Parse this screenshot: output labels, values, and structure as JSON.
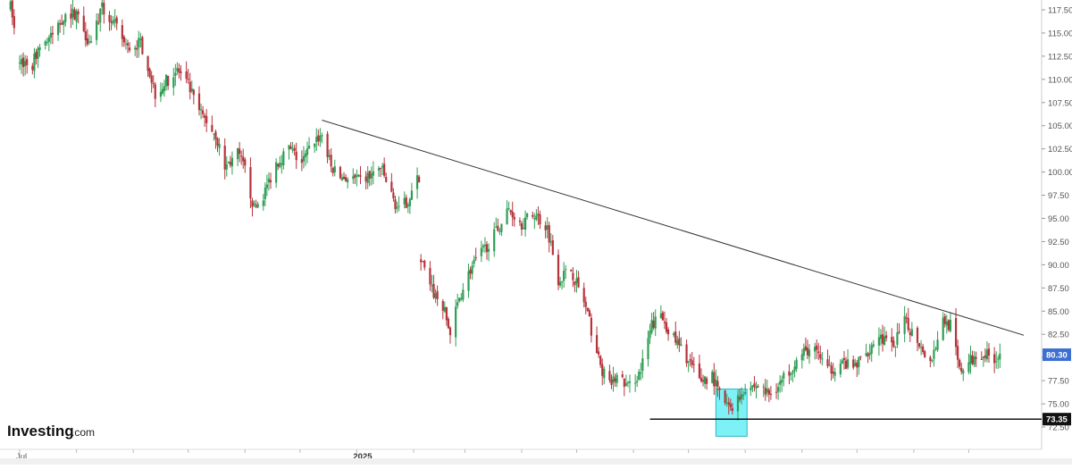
{
  "brand": {
    "name": "Investing",
    "suffix": ".com"
  },
  "colors": {
    "up": "#2e9e54",
    "down": "#b5333a",
    "trendline": "#333333",
    "support": "#000000",
    "highlight_fill": "#6ff0f5",
    "highlight_stroke": "#2bb7c4",
    "last_price_bg": "#3d6fd1",
    "level_badge_bg": "#111111",
    "axis_text": "#555555"
  },
  "chart_data": {
    "type": "candlestick",
    "title": "",
    "xlabel": "",
    "ylabel": "",
    "y_axis_position": "right",
    "ylim": [
      71.5,
      118.3
    ],
    "grid": false,
    "y_ticks": [
      "117.50",
      "115.00",
      "112.50",
      "110.00",
      "107.50",
      "105.00",
      "102.50",
      "100.00",
      "97.50",
      "95.00",
      "92.50",
      "90.00",
      "87.50",
      "85.00",
      "82.50",
      "80.00",
      "77.50",
      "75.00",
      "72.50"
    ],
    "x_labels": [
      {
        "text": "Jul",
        "date": "2024-07-01",
        "bold": false
      },
      {
        "text": "2025",
        "date": "2025-01-01",
        "bold": true
      }
    ],
    "last_price": {
      "label": "80.30",
      "value": 80.3
    },
    "support_level": {
      "label": "73.35",
      "value": 73.35,
      "from": "2025-06-10",
      "to": "2025-12-31"
    },
    "trendline": {
      "from": {
        "date": "2024-12-13",
        "value": 105.6
      },
      "to": {
        "date": "2025-12-31",
        "value": 82.4
      }
    },
    "highlight_zone": {
      "from": "2025-07-16",
      "to": "2025-08-02",
      "low": 71.5,
      "high": 76.6
    },
    "anchors": [
      [
        "2024-06-26",
        117.8
      ],
      [
        "2024-07-01",
        112.0
      ],
      [
        "2024-07-08",
        111.5
      ],
      [
        "2024-07-11",
        113.5
      ],
      [
        "2024-07-18",
        114.5
      ],
      [
        "2024-07-25",
        116.8
      ],
      [
        "2024-08-01",
        117.2
      ],
      [
        "2024-08-08",
        114.0
      ],
      [
        "2024-08-15",
        117.6
      ],
      [
        "2024-08-22",
        115.8
      ],
      [
        "2024-08-29",
        113.3
      ],
      [
        "2024-09-05",
        114.0
      ],
      [
        "2024-09-09",
        111.5
      ],
      [
        "2024-09-13",
        108.5
      ],
      [
        "2024-09-20",
        110.0
      ],
      [
        "2024-09-25",
        111.0
      ],
      [
        "2024-10-01",
        109.3
      ],
      [
        "2024-10-07",
        106.5
      ],
      [
        "2024-10-11",
        105.5
      ],
      [
        "2024-10-16",
        104.0
      ],
      [
        "2024-10-21",
        100.5
      ],
      [
        "2024-10-28",
        102.0
      ],
      [
        "2024-11-01",
        100.2
      ],
      [
        "2024-11-06",
        96.0
      ],
      [
        "2024-11-11",
        97.5
      ],
      [
        "2024-11-18",
        101.0
      ],
      [
        "2024-11-25",
        102.5
      ],
      [
        "2024-12-02",
        101.0
      ],
      [
        "2024-12-09",
        103.5
      ],
      [
        "2024-12-13",
        104.0
      ],
      [
        "2024-12-18",
        100.5
      ],
      [
        "2024-12-23",
        99.5
      ],
      [
        "2025-01-03",
        99.0
      ],
      [
        "2025-01-10",
        99.8
      ],
      [
        "2025-01-14",
        100.5
      ],
      [
        "2025-01-21",
        97.0
      ],
      [
        "2025-01-24",
        95.8
      ],
      [
        "2025-01-29",
        97.0
      ],
      [
        "2025-02-04",
        99.5
      ],
      [
        "2025-02-05",
        90.6
      ],
      [
        "2025-02-10",
        87.5
      ],
      [
        "2025-02-17",
        85.5
      ],
      [
        "2025-02-21",
        82.5
      ],
      [
        "2025-02-26",
        86.5
      ],
      [
        "2025-03-04",
        89.5
      ],
      [
        "2025-03-11",
        91.5
      ],
      [
        "2025-03-18",
        93.5
      ],
      [
        "2025-03-25",
        96.0
      ],
      [
        "2025-04-01",
        94.5
      ],
      [
        "2025-04-08",
        95.5
      ],
      [
        "2025-04-15",
        94.0
      ],
      [
        "2025-04-21",
        88.5
      ],
      [
        "2025-04-28",
        89.5
      ],
      [
        "2025-05-05",
        86.0
      ],
      [
        "2025-05-09",
        83.0
      ],
      [
        "2025-05-14",
        79.0
      ],
      [
        "2025-05-19",
        77.0
      ],
      [
        "2025-05-23",
        78.0
      ],
      [
        "2025-05-29",
        76.8
      ],
      [
        "2025-06-05",
        78.5
      ],
      [
        "2025-06-11",
        83.5
      ],
      [
        "2025-06-16",
        84.5
      ],
      [
        "2025-06-23",
        82.0
      ],
      [
        "2025-06-30",
        80.0
      ],
      [
        "2025-07-07",
        77.5
      ],
      [
        "2025-07-14",
        78.0
      ],
      [
        "2025-07-18",
        76.0
      ],
      [
        "2025-07-23",
        74.5
      ],
      [
        "2025-07-28",
        75.5
      ],
      [
        "2025-08-01",
        76.8
      ],
      [
        "2025-08-08",
        77.0
      ],
      [
        "2025-08-14",
        76.0
      ],
      [
        "2025-08-21",
        77.5
      ],
      [
        "2025-08-28",
        79.5
      ],
      [
        "2025-09-04",
        80.8
      ],
      [
        "2025-09-10",
        80.5
      ],
      [
        "2025-09-15",
        78.5
      ],
      [
        "2025-09-22",
        79.5
      ],
      [
        "2025-09-29",
        78.8
      ],
      [
        "2025-10-06",
        80.5
      ],
      [
        "2025-10-13",
        82.5
      ],
      [
        "2025-10-20",
        81.0
      ],
      [
        "2025-10-27",
        83.8
      ],
      [
        "2025-11-03",
        82.0
      ],
      [
        "2025-11-10",
        79.5
      ],
      [
        "2025-11-17",
        84.0
      ],
      [
        "2025-11-21",
        83.5
      ],
      [
        "2025-11-26",
        78.5
      ],
      [
        "2025-12-01",
        79.5
      ],
      [
        "2025-12-08",
        80.5
      ],
      [
        "2025-12-15",
        80.0
      ],
      [
        "2025-12-19",
        80.3
      ]
    ]
  }
}
